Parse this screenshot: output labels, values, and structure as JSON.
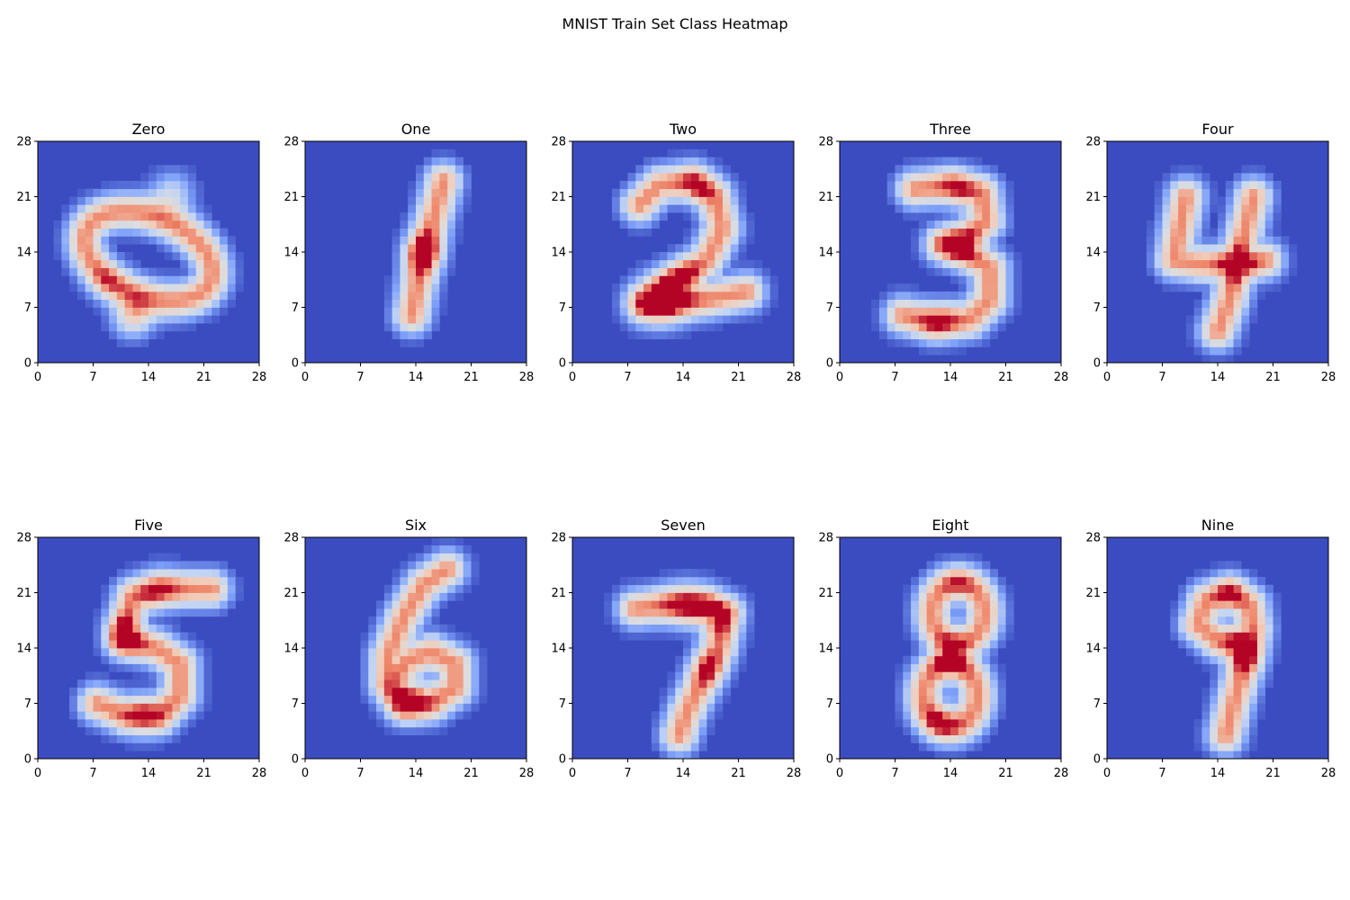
{
  "chart_data": {
    "type": "heatmap",
    "title": "MNIST Train Set Class Heatmap",
    "colormap": "coolwarm",
    "grid": false,
    "xlim": [
      0,
      28
    ],
    "ylim": [
      0,
      28
    ],
    "xticks": [
      0,
      7,
      14,
      21,
      28
    ],
    "yticks": [
      0,
      7,
      14,
      21,
      28
    ],
    "panels": [
      {
        "title": "Zero",
        "digit": 0
      },
      {
        "title": "One",
        "digit": 1
      },
      {
        "title": "Two",
        "digit": 2
      },
      {
        "title": "Three",
        "digit": 3
      },
      {
        "title": "Four",
        "digit": 4
      },
      {
        "title": "Five",
        "digit": 5
      },
      {
        "title": "Six",
        "digit": 6
      },
      {
        "title": "Seven",
        "digit": 7
      },
      {
        "title": "Eight",
        "digit": 8
      },
      {
        "title": "Nine",
        "digit": 9
      }
    ]
  }
}
